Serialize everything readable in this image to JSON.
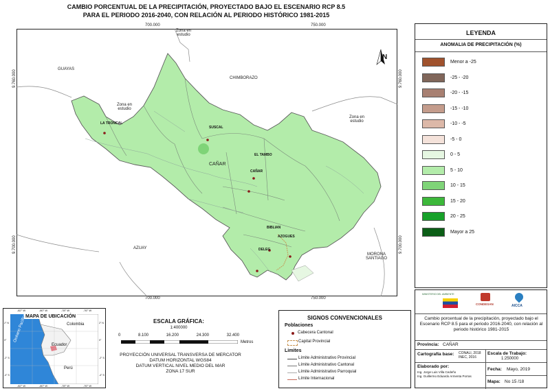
{
  "title": {
    "line1": "CAMBIO PORCENTUAL DE LA PRECIPITACIÓN, PROYECTADO BAJO EL ESCENARIO RCP 8.5",
    "line2": "PARA EL PERIODO 2016-2040, CON RELACIÓN AL PERIODO HISTÓRICO 1981-2015"
  },
  "map": {
    "top_coords": [
      "700.000",
      "750.000"
    ],
    "bottom_coords": [
      "700.000",
      "750.000"
    ],
    "left_coords": [
      "9.760.000",
      "9.700.000"
    ],
    "right_coords": [
      "9.760.000",
      "9.700.000"
    ],
    "north_label": "N",
    "neighbors": {
      "guayas": "GUAYAS",
      "chimborazo": "CHIMBORAZO",
      "azuay": "AZUAY",
      "morona": "MORONA\nSANTIAGO",
      "zona_top": "Zona en\nestudio",
      "zona_left": "Zona en\nestudio",
      "zona_right": "Zona en\nestudio"
    },
    "province_label": "CAÑAR",
    "towns": [
      "LA TRONCAL",
      "SUSCAL",
      "EL TAMBO",
      "CAÑAR",
      "BIBLIAN",
      "AZOGUES",
      "DELEG"
    ],
    "colors": {
      "main": "#b3ecaa",
      "accent": "#7fd478",
      "border": "#5a5a5a"
    }
  },
  "legend": {
    "title": "LEYENDA",
    "subtitle": "ANOMALIA DE PRECIPITACIÓN (%)",
    "items": [
      {
        "label": "Menor a -25",
        "color": "#a0522d"
      },
      {
        "label": "-25 - -20",
        "color": "#80665a"
      },
      {
        "label": "-20 - -15",
        "color": "#a88072"
      },
      {
        "label": "-15 - -10",
        "color": "#c49c8c"
      },
      {
        "label": "-10 - -5",
        "color": "#dcb8a8"
      },
      {
        "label": "-5 - 0",
        "color": "#f4e2da"
      },
      {
        "label": "0 - 5",
        "color": "#e6f7e2"
      },
      {
        "label": "5 - 10",
        "color": "#b3ecaa"
      },
      {
        "label": "10 - 15",
        "color": "#7fd478"
      },
      {
        "label": "15 - 20",
        "color": "#3cb83a"
      },
      {
        "label": "20 - 25",
        "color": "#17a12a"
      },
      {
        "label": "Mayor a 25",
        "color": "#0b5e16"
      }
    ]
  },
  "location_map": {
    "title": "MAPA DE UBICACIÓN",
    "top_ticks": [
      "-82° W",
      "-80° W",
      "-78° W",
      "-76° W"
    ],
    "bottom_ticks": [
      "-82° W",
      "-80° W",
      "-78° W",
      "-76° W"
    ],
    "left_ticks": [
      "2° N",
      "0°",
      "-2° S",
      "-4° S"
    ],
    "right_ticks": [
      "2° N",
      "0°",
      "-2° S",
      "-4° S"
    ],
    "countries": [
      "Colombia",
      "Ecuador",
      "Perú"
    ],
    "ocean": "Océano Pacífico"
  },
  "scale": {
    "title": "ESCALA GRÁFICA:",
    "ratio": "1:400000",
    "ticks": [
      "0",
      "8.100",
      "16.200",
      "24.300",
      "32.400"
    ],
    "unit": "Metros",
    "projection": [
      "PROYECCIÓN UNIVERSAL TRANSVERSA DE MERCATOR",
      "DATUM HORIZONTAL WGS84",
      "DATUM VERTICAL NIVEL MEDIO DEL MAR",
      "ZONA 17 SUR"
    ]
  },
  "signs": {
    "title": "SIGNOS CONVENCIONALES",
    "poblaciones": "Poblaciones",
    "cabecera": "Cabecera Cantonal",
    "capital": "Capital Provincial",
    "limites": "Limites",
    "lines": [
      "Límite Administrativo Provincial",
      "Límite Administrativo Cantonal",
      "Límite Administrativo Parroquial",
      "Límite Internacional"
    ]
  },
  "info": {
    "logo_labels": [
      "MINISTERIO DEL AMBIENTE",
      "CONDESAN",
      "AICCA"
    ],
    "description": "Cambio porcentual de la precipitación, proyectado bajo el Escenario RCP 8.5 para el periodo 2016-2040, con relación al periodo histórico 1981-2015",
    "provincia_label": "Provincia:",
    "provincia_value": "CAÑAR",
    "cartografia_label": "Cartografía base:",
    "cartografia_value": "CONALI, 2018 INEC, 2016",
    "escala_label": "Escala de Trabajo:",
    "escala_value": "1:250000",
    "elaborado_label": "Elaborado por:",
    "elaborado_value": [
      "Ing. Jorge Luis Villa Cedeño",
      "Ing. Guillermo Eduardo Armenta Porras"
    ],
    "fecha_label": "Fecha:",
    "fecha_value": "Mayo, 2019",
    "mapa_label": "Mapa:",
    "mapa_value": "No 15 /18"
  }
}
